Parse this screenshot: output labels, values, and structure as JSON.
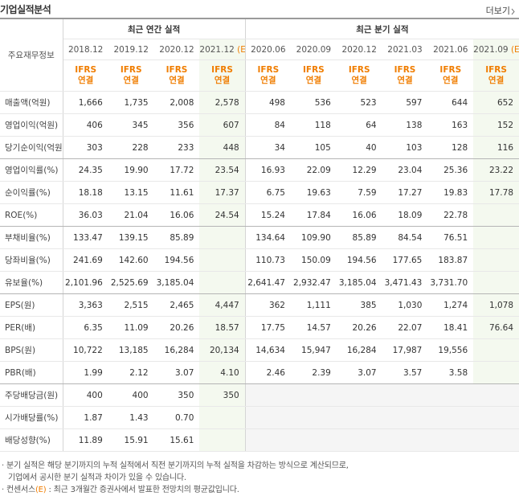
{
  "header": {
    "title": "기업실적분석",
    "more": "더보기"
  },
  "table": {
    "corner": "주요재무정보",
    "groups": [
      {
        "label": "최근 연간 실적",
        "span": 4
      },
      {
        "label": "최근 분기 실적",
        "span": 6
      }
    ],
    "columns": [
      {
        "period": "2018.12",
        "estimate": null,
        "ifrs": "IFRS",
        "basis": "연결"
      },
      {
        "period": "2019.12",
        "estimate": null,
        "ifrs": "IFRS",
        "basis": "연결"
      },
      {
        "period": "2020.12",
        "estimate": null,
        "ifrs": "IFRS",
        "basis": "연결"
      },
      {
        "period": "2021.12",
        "estimate": "(E)",
        "ifrs": "IFRS",
        "basis": "연결"
      },
      {
        "period": "2020.06",
        "estimate": null,
        "ifrs": "IFRS",
        "basis": "연결"
      },
      {
        "period": "2020.09",
        "estimate": null,
        "ifrs": "IFRS",
        "basis": "연결"
      },
      {
        "period": "2020.12",
        "estimate": null,
        "ifrs": "IFRS",
        "basis": "연결"
      },
      {
        "period": "2021.03",
        "estimate": null,
        "ifrs": "IFRS",
        "basis": "연결"
      },
      {
        "period": "2021.06",
        "estimate": null,
        "ifrs": "IFRS",
        "basis": "연결"
      },
      {
        "period": "2021.09",
        "estimate": "(E)",
        "ifrs": "IFRS",
        "basis": "연결"
      }
    ],
    "rows": [
      {
        "label": "매출액(억원)",
        "cells": [
          "1,666",
          "1,735",
          "2,008",
          "2,578",
          "498",
          "536",
          "523",
          "597",
          "644",
          "652"
        ]
      },
      {
        "label": "영업이익(억원)",
        "cells": [
          "406",
          "345",
          "356",
          "607",
          "84",
          "118",
          "64",
          "138",
          "163",
          "152"
        ]
      },
      {
        "label": "당기순이익(억원)",
        "cells": [
          "303",
          "228",
          "233",
          "448",
          "34",
          "105",
          "40",
          "103",
          "128",
          "116"
        ]
      },
      {
        "label": "영업이익률(%)",
        "cells": [
          "24.35",
          "19.90",
          "17.72",
          "23.54",
          "16.93",
          "22.09",
          "12.29",
          "23.04",
          "25.36",
          "23.22"
        ]
      },
      {
        "label": "순이익률(%)",
        "cells": [
          "18.18",
          "13.15",
          "11.61",
          "17.37",
          "6.75",
          "19.63",
          "7.59",
          "17.27",
          "19.83",
          "17.78"
        ]
      },
      {
        "label": "ROE(%)",
        "cells": [
          "36.03",
          "21.04",
          "16.06",
          "24.54",
          "15.24",
          "17.84",
          "16.06",
          "18.09",
          "22.78",
          null
        ]
      },
      {
        "label": "부채비율(%)",
        "cells": [
          "133.47",
          "139.15",
          "85.89",
          null,
          "134.64",
          "109.90",
          "85.89",
          "84.54",
          "76.51",
          null
        ]
      },
      {
        "label": "당좌비율(%)",
        "cells": [
          "241.69",
          "142.60",
          "194.56",
          null,
          "110.73",
          "150.09",
          "194.56",
          "177.65",
          "183.87",
          null
        ]
      },
      {
        "label": "유보율(%)",
        "cells": [
          "2,101.96",
          "2,525.69",
          "3,185.04",
          null,
          "2,641.47",
          "2,932.47",
          "3,185.04",
          "3,471.43",
          "3,731.70",
          null
        ]
      },
      {
        "label": "EPS(원)",
        "cells": [
          "3,363",
          "2,515",
          "2,465",
          "4,447",
          "362",
          "1,111",
          "385",
          "1,030",
          "1,274",
          "1,078"
        ]
      },
      {
        "label": "PER(배)",
        "cells": [
          "6.35",
          "11.09",
          "20.26",
          "18.57",
          "17.75",
          "14.57",
          "20.26",
          "22.07",
          "18.41",
          "76.64"
        ]
      },
      {
        "label": "BPS(원)",
        "cells": [
          "10,722",
          "13,185",
          "16,284",
          "20,134",
          "14,634",
          "15,947",
          "16,284",
          "17,987",
          "19,556",
          null
        ]
      },
      {
        "label": "PBR(배)",
        "cells": [
          "1.99",
          "2.12",
          "3.07",
          "4.10",
          "2.46",
          "2.39",
          "3.07",
          "3.57",
          "3.58",
          null
        ]
      },
      {
        "label": "주당배당금(원)",
        "cells": [
          "400",
          "400",
          "350",
          "350",
          null,
          null,
          null,
          null,
          null,
          null
        ]
      },
      {
        "label": "시가배당률(%)",
        "cells": [
          "1.87",
          "1.43",
          "0.70",
          null,
          null,
          null,
          null,
          null,
          null,
          null
        ]
      },
      {
        "label": "배당성향(%)",
        "cells": [
          "11.89",
          "15.91",
          "15.61",
          null,
          null,
          null,
          null,
          null,
          null,
          null
        ]
      }
    ]
  },
  "notes": {
    "line1": "분기 실적은 해당 분기까지의 누적 실적에서 직전 분기까지의 누적 실적을 차감하는 방식으로 계산되므로,",
    "line2": "기업에서 공시한 분기 실적과 차이가 있을 수 있습니다.",
    "consensus": "컨센서스",
    "mark": "(E)",
    "consensus_text": ": 최근 3개월간 증권사에서 발표한 전망치의 평균값입니다."
  }
}
